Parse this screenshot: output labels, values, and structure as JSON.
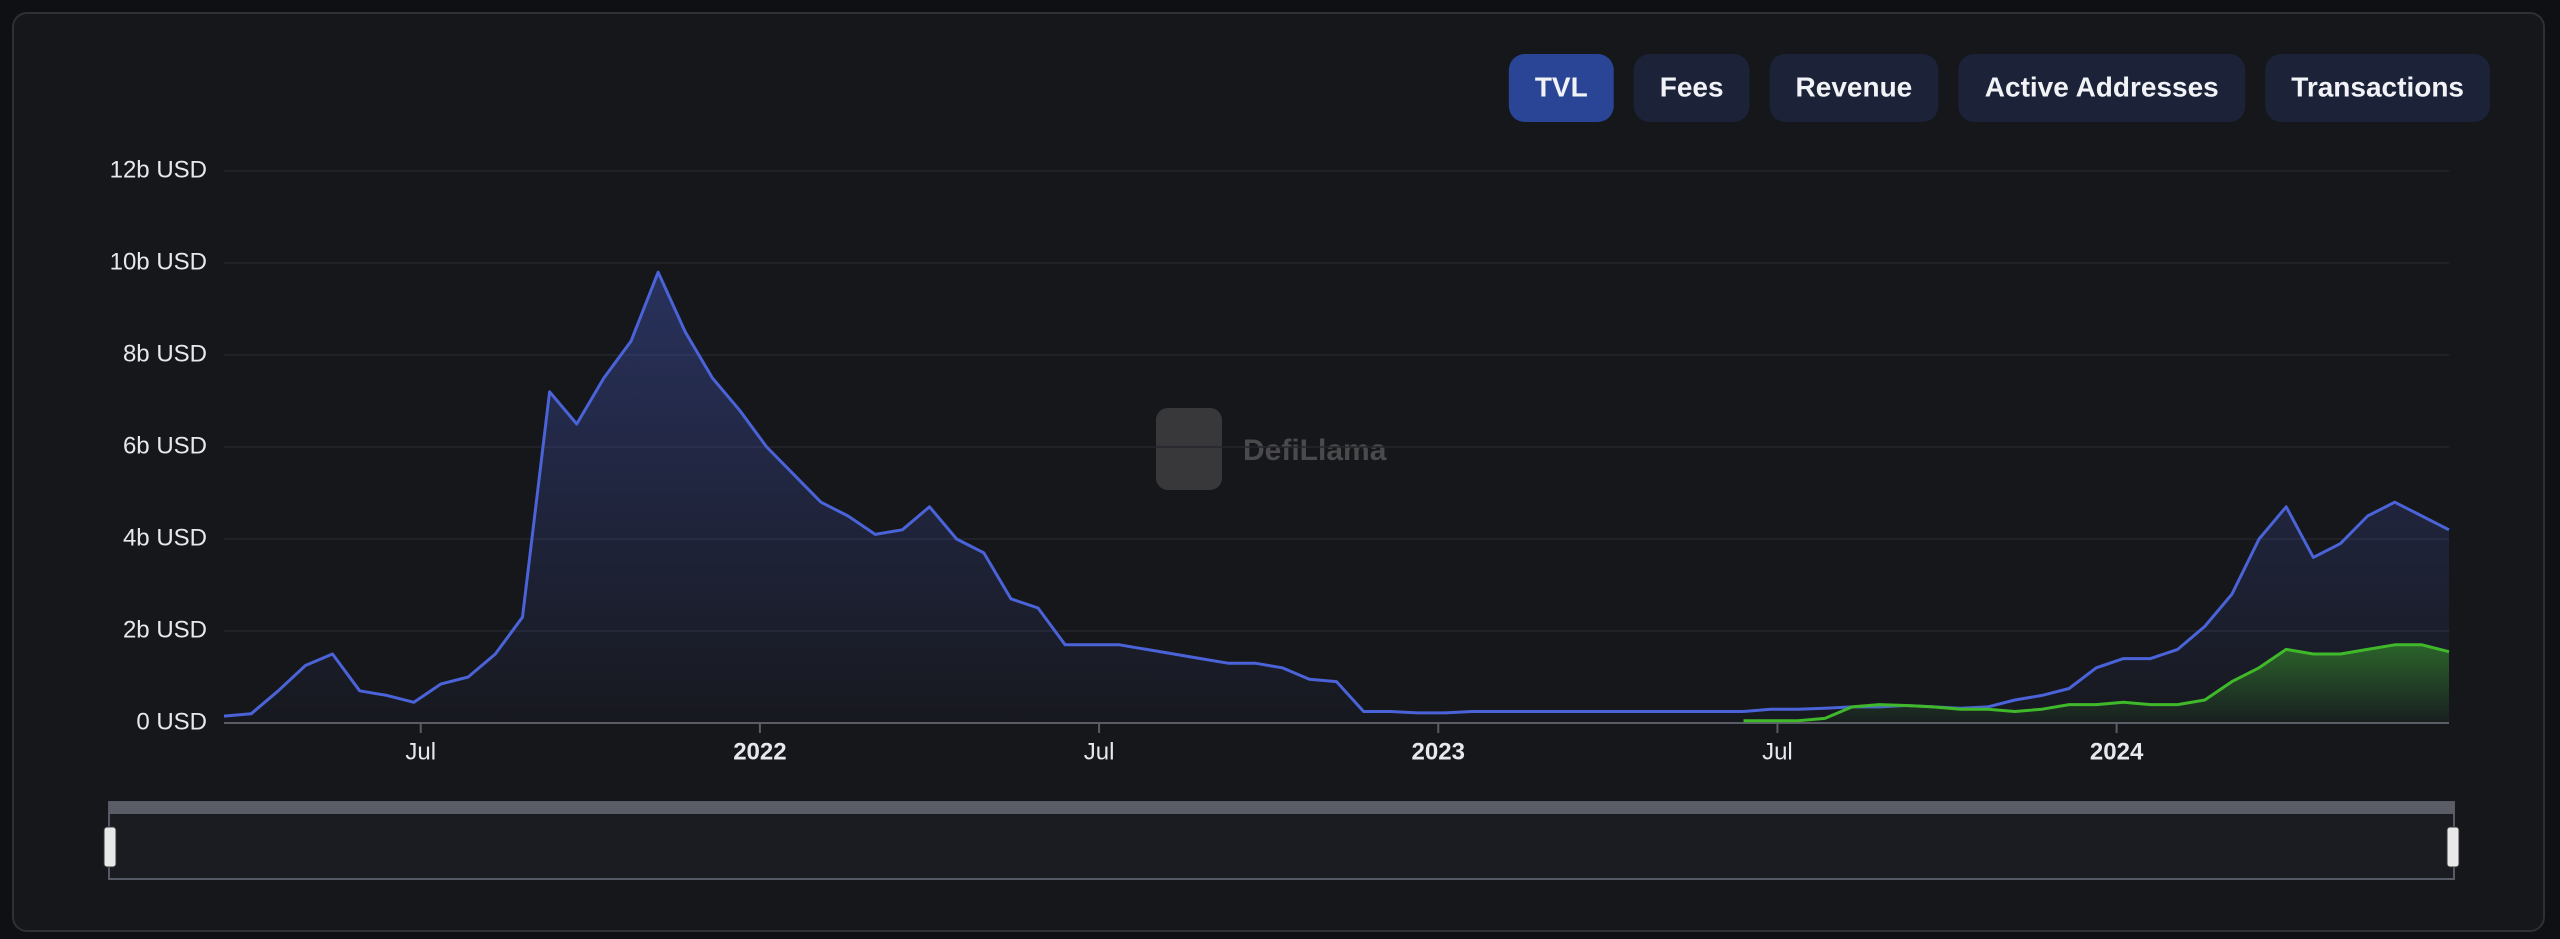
{
  "buttons": [
    "TVL",
    "Fees",
    "Revenue",
    "Active Addresses",
    "Transactions"
  ],
  "active_button": 0,
  "watermark": "DefiLlama",
  "chart_data": {
    "type": "line",
    "x": [
      2021.21,
      2021.25,
      2021.29,
      2021.33,
      2021.37,
      2021.41,
      2021.45,
      2021.49,
      2021.53,
      2021.57,
      2021.61,
      2021.65,
      2021.69,
      2021.73,
      2021.77,
      2021.81,
      2021.85,
      2021.89,
      2021.93,
      2021.97,
      2022.01,
      2022.05,
      2022.09,
      2022.13,
      2022.17,
      2022.21,
      2022.25,
      2022.29,
      2022.33,
      2022.37,
      2022.41,
      2022.45,
      2022.49,
      2022.53,
      2022.57,
      2022.61,
      2022.65,
      2022.69,
      2022.73,
      2022.77,
      2022.81,
      2022.85,
      2022.89,
      2022.93,
      2022.97,
      2023.01,
      2023.05,
      2023.09,
      2023.13,
      2023.17,
      2023.21,
      2023.25,
      2023.29,
      2023.33,
      2023.37,
      2023.41,
      2023.45,
      2023.49,
      2023.53,
      2023.57,
      2023.61,
      2023.65,
      2023.69,
      2023.73,
      2023.77,
      2023.81,
      2023.85,
      2023.89,
      2023.93,
      2023.97,
      2024.01,
      2024.05,
      2024.09,
      2024.13,
      2024.17,
      2024.21,
      2024.25,
      2024.29,
      2024.33,
      2024.37,
      2024.41,
      2024.45,
      2024.49
    ],
    "series": [
      {
        "color": "#4b63d8",
        "values": [
          0.15,
          0.2,
          0.7,
          1.25,
          1.5,
          0.7,
          0.6,
          0.45,
          0.85,
          1.0,
          1.5,
          2.3,
          7.2,
          6.5,
          7.5,
          8.3,
          9.8,
          8.5,
          7.5,
          6.8,
          6.0,
          5.4,
          4.8,
          4.5,
          4.1,
          4.2,
          4.7,
          4.0,
          3.7,
          2.7,
          2.5,
          1.7,
          1.7,
          1.7,
          1.6,
          1.5,
          1.4,
          1.3,
          1.3,
          1.2,
          0.95,
          0.9,
          0.25,
          0.25,
          0.22,
          0.22,
          0.25,
          0.25,
          0.25,
          0.25,
          0.25,
          0.25,
          0.25,
          0.25,
          0.25,
          0.25,
          0.25,
          0.3,
          0.3,
          0.32,
          0.35,
          0.35,
          0.38,
          0.35,
          0.32,
          0.35,
          0.5,
          0.6,
          0.75,
          1.2,
          1.4,
          1.4,
          1.6,
          2.1,
          2.8,
          4.0,
          4.7,
          3.6,
          3.9,
          4.5,
          4.8,
          4.5,
          4.2
        ]
      },
      {
        "color": "#3fb82a",
        "values": [
          null,
          null,
          null,
          null,
          null,
          null,
          null,
          null,
          null,
          null,
          null,
          null,
          null,
          null,
          null,
          null,
          null,
          null,
          null,
          null,
          null,
          null,
          null,
          null,
          null,
          null,
          null,
          null,
          null,
          null,
          null,
          null,
          null,
          null,
          null,
          null,
          null,
          null,
          null,
          null,
          null,
          null,
          null,
          null,
          null,
          null,
          null,
          null,
          null,
          null,
          null,
          null,
          null,
          null,
          null,
          null,
          0.05,
          0.05,
          0.05,
          0.1,
          0.35,
          0.4,
          0.38,
          0.35,
          0.3,
          0.3,
          0.25,
          0.3,
          0.4,
          0.4,
          0.45,
          0.4,
          0.4,
          0.5,
          0.9,
          1.2,
          1.6,
          1.5,
          1.5,
          1.6,
          1.7,
          1.7,
          1.55
        ]
      }
    ],
    "xlim": [
      2021.21,
      2024.49
    ],
    "xticks": [
      {
        "value": 2021.5,
        "label": "Jul"
      },
      2022,
      {
        "value": 2022.5,
        "label": "Jul"
      },
      2023,
      {
        "value": 2023.5,
        "label": "Jul"
      },
      2024
    ],
    "ylim": [
      0,
      12
    ],
    "yticks": [
      {
        "value": 0,
        "label": "0 USD"
      },
      {
        "value": 2,
        "label": "2b USD"
      },
      {
        "value": 4,
        "label": "4b USD"
      },
      {
        "value": 6,
        "label": "6b USD"
      },
      {
        "value": 8,
        "label": "8b USD"
      },
      {
        "value": 10,
        "label": "10b USD"
      },
      {
        "value": 12,
        "label": "12b USD"
      }
    ],
    "grid": true
  }
}
